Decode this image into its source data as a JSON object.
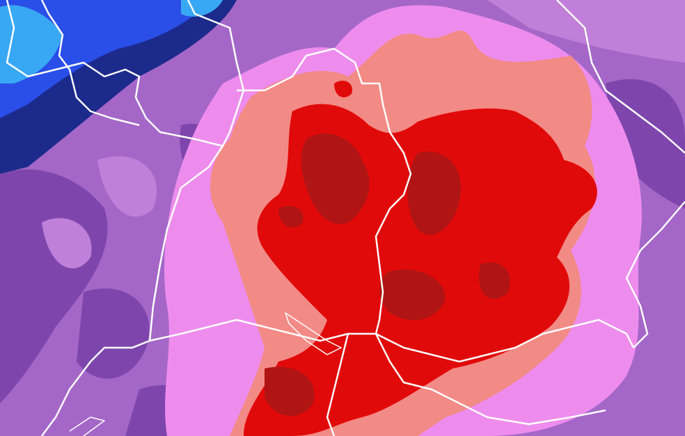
{
  "map": {
    "colors": {
      "background_purple": "#a467c8",
      "dark_purple": "#7e46ad",
      "light_purple": "#c07fd8",
      "navy": "#1c2a8c",
      "blue": "#2a4ee8",
      "light_blue": "#38a8f4",
      "pink": "#ee8cee",
      "salmon": "#f28a86",
      "red": "#e10a0a",
      "dark_red": "#b01414",
      "border": "#ffffff"
    }
  }
}
